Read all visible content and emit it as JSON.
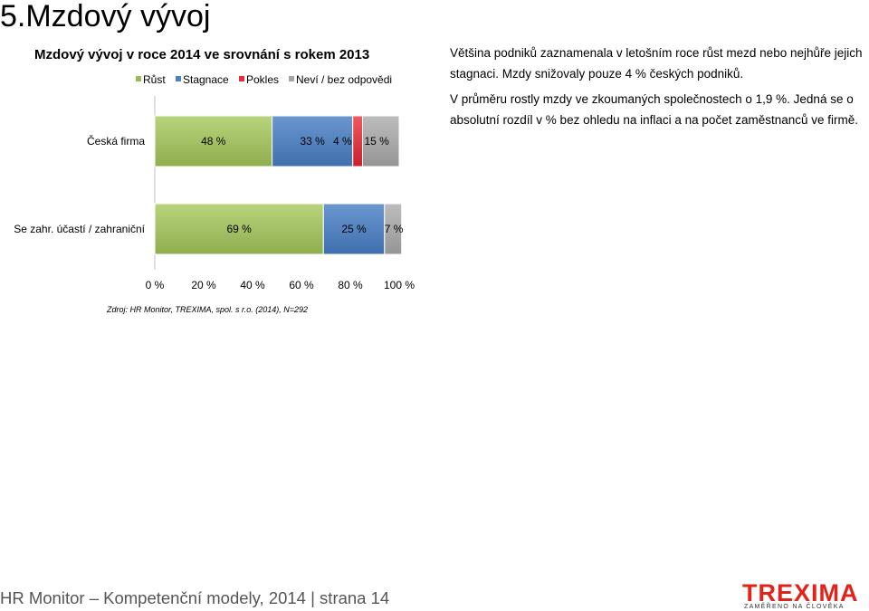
{
  "page": {
    "title": "5.Mzdový vývoj",
    "footer": "HR Monitor – Kompetenční modely, 2014 | strana 14",
    "logo_text": "TREXIMA",
    "logo_tagline": "ZAMĚŘENO NA ČLOVĚKA"
  },
  "text": {
    "paragraph1": "Většina podniků zaznamenala v letošním roce růst mezd nebo nejhůře jejich stagnaci. Mzdy snižovaly pouze 4 % českých podniků.",
    "paragraph2": "V průměru rostly mzdy ve zkoumaných společnostech o 1,9 %. Jedná se o absolutní rozdíl v % bez ohledu na inflaci a na počet zaměstnanců ve firmě."
  },
  "chart_data": {
    "type": "bar",
    "orientation": "horizontal-stacked-100",
    "title": "Mzdový vývoj v roce 2014 ve srovnání s rokem 2013",
    "source": "Zdroj: HR  Monitor, TREXIMA, spol. s r.o.  (2014), N=292",
    "categories": [
      "Česká firma",
      "Se zahr. účastí / zahraniční"
    ],
    "series": [
      {
        "name": "Růst",
        "values": [
          48,
          69
        ],
        "labels": [
          "48 %",
          "69 %"
        ]
      },
      {
        "name": "Stagnace",
        "values": [
          33,
          25
        ],
        "labels": [
          "33 %",
          "25 %"
        ]
      },
      {
        "name": "Pokles",
        "values": [
          4,
          0
        ],
        "labels": [
          "4 %",
          ""
        ]
      },
      {
        "name": "Neví / bez odpovědi",
        "values": [
          15,
          7
        ],
        "labels": [
          "15 %",
          "7 %"
        ]
      }
    ],
    "xlim": [
      0,
      100
    ],
    "xticks": [
      "0 %",
      "20 %",
      "40 %",
      "60 %",
      "80 %",
      "100 %"
    ],
    "legend_position": "top",
    "grid": false,
    "colors": [
      "#9bbb59",
      "#4f81bd",
      "#e0303a",
      "#a6a6a6"
    ]
  }
}
